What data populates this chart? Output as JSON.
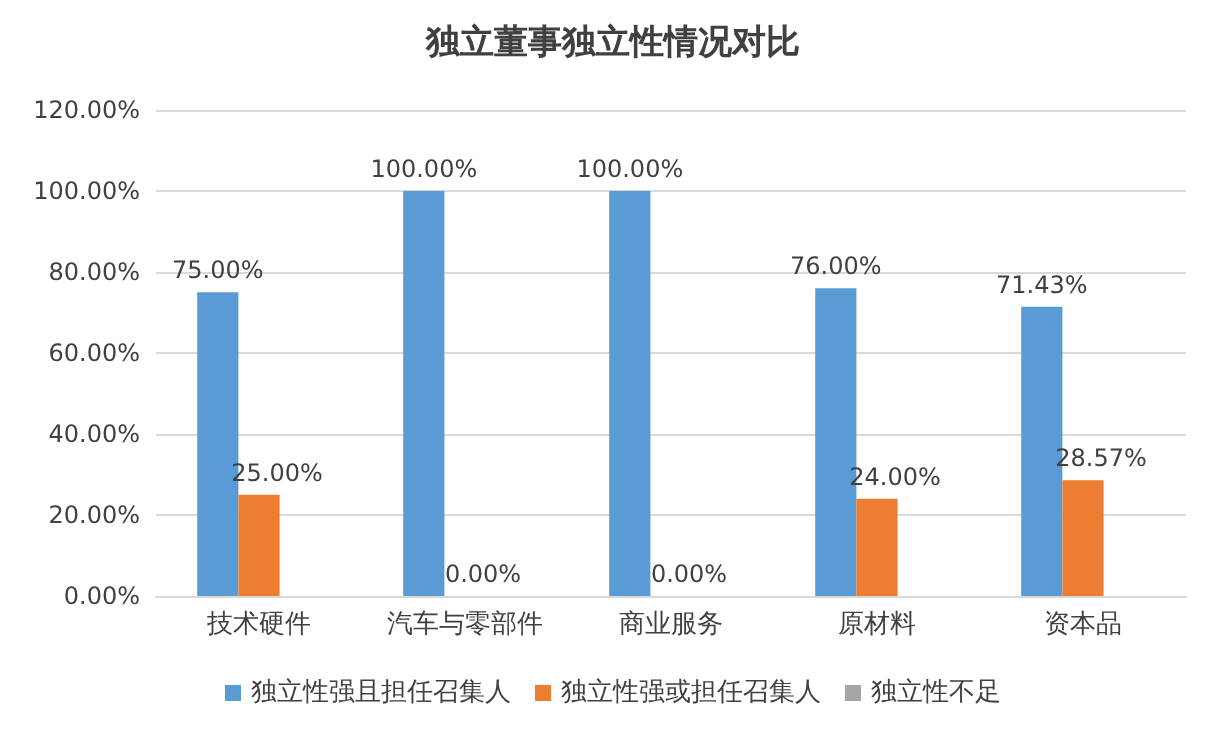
{
  "chart_data": {
    "type": "bar",
    "title": "独立董事独立性情况对比",
    "categories": [
      "技术硬件",
      "汽车与零部件",
      "商业服务",
      "原材料",
      "资本品"
    ],
    "series": [
      {
        "name": "独立性强且担任召集人",
        "color": "#5b9bd5",
        "values": [
          75,
          100,
          100,
          76,
          71.43
        ],
        "value_labels": [
          "75.00%",
          "100.00%",
          "100.00%",
          "76.00%",
          "71.43%"
        ]
      },
      {
        "name": "独立性强或担任召集人",
        "color": "#ed7d31",
        "values": [
          25,
          0,
          0,
          24,
          28.57
        ],
        "value_labels": [
          "25.00%",
          "0.00%",
          "0.00%",
          "24.00%",
          "28.57%"
        ]
      },
      {
        "name": "独立性不足",
        "color": "#a5a5a5",
        "values": [
          null,
          null,
          null,
          null,
          null
        ]
      }
    ],
    "ylim": [
      0,
      120
    ],
    "yticks": [
      {
        "value": 0,
        "label": "0.00%"
      },
      {
        "value": 20,
        "label": "20.00%"
      },
      {
        "value": 40,
        "label": "40.00%"
      },
      {
        "value": 60,
        "label": "60.00%"
      },
      {
        "value": 80,
        "label": "80.00%"
      },
      {
        "value": 100,
        "label": "100.00%"
      },
      {
        "value": 120,
        "label": "120.00%"
      }
    ],
    "grid": "y",
    "legend": "bottom"
  }
}
